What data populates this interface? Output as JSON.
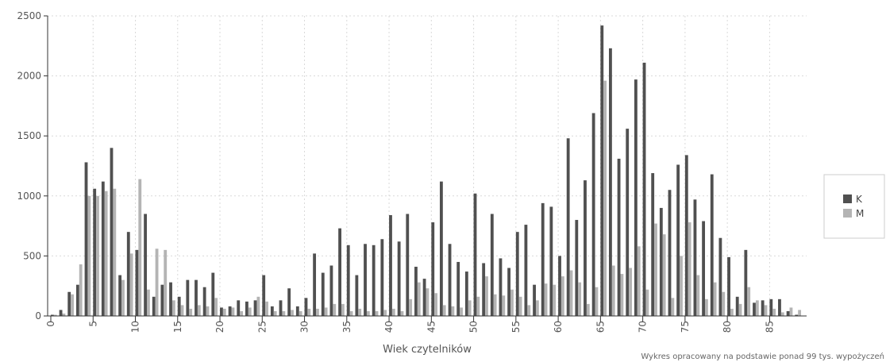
{
  "chart_data": {
    "type": "bar",
    "xlabel": "Wiek czytelników",
    "ylabel": "",
    "ylim": [
      0,
      2500
    ],
    "yticks": [
      0,
      500,
      1000,
      1500,
      2000,
      2500
    ],
    "xticks": [
      0,
      5,
      10,
      15,
      20,
      25,
      30,
      35,
      40,
      45,
      50,
      55,
      60,
      65,
      70,
      75,
      80,
      85
    ],
    "x": [
      0,
      1,
      2,
      3,
      4,
      5,
      6,
      7,
      8,
      9,
      10,
      11,
      12,
      13,
      14,
      15,
      16,
      17,
      18,
      19,
      20,
      21,
      22,
      23,
      24,
      25,
      26,
      27,
      28,
      29,
      30,
      31,
      32,
      33,
      34,
      35,
      36,
      37,
      38,
      39,
      40,
      41,
      42,
      43,
      44,
      45,
      46,
      47,
      48,
      49,
      50,
      51,
      52,
      53,
      54,
      55,
      56,
      57,
      58,
      59,
      60,
      61,
      62,
      63,
      64,
      65,
      66,
      67,
      68,
      69,
      70,
      71,
      72,
      73,
      74,
      75,
      76,
      77,
      78,
      79,
      80,
      81,
      82,
      83,
      84,
      85,
      86,
      87,
      88
    ],
    "series": [
      {
        "name": "K",
        "color": "#505050",
        "values": [
          10,
          50,
          200,
          260,
          1280,
          1060,
          1120,
          1400,
          340,
          700,
          550,
          850,
          160,
          260,
          280,
          160,
          300,
          300,
          240,
          360,
          70,
          80,
          130,
          120,
          130,
          340,
          80,
          130,
          230,
          80,
          150,
          520,
          360,
          420,
          730,
          590,
          340,
          600,
          590,
          640,
          840,
          620,
          850,
          410,
          310,
          780,
          1120,
          600,
          450,
          370,
          1020,
          440,
          850,
          480,
          400,
          700,
          760,
          260,
          940,
          910,
          500,
          1480,
          800,
          1130,
          1690,
          2420,
          2230,
          1310,
          1560,
          1970,
          2110,
          1190,
          900,
          1050,
          1260,
          1340,
          970,
          790,
          1180,
          650,
          490,
          160,
          550,
          110,
          130,
          140,
          140,
          40,
          10
        ],
        "overlay": [
          0,
          0,
          0,
          0,
          0,
          0,
          0,
          0,
          0,
          0,
          0,
          0,
          0,
          0,
          0,
          0,
          0,
          0,
          0,
          0,
          0,
          0,
          0,
          0,
          0,
          0,
          0,
          0,
          0,
          0,
          0,
          0,
          0,
          0,
          0,
          0,
          0,
          0,
          0,
          0,
          0,
          0,
          0,
          0,
          0,
          0,
          0,
          0,
          0,
          0,
          0,
          0,
          0,
          0,
          0,
          0,
          0,
          0,
          0,
          0,
          0,
          0,
          0,
          0,
          0,
          0,
          0,
          0,
          0,
          0,
          0,
          0,
          0,
          0,
          0,
          0,
          0,
          0,
          0,
          0,
          0,
          0,
          0,
          0,
          0,
          0,
          0,
          0,
          0
        ]
      },
      {
        "name": "M",
        "color": "#b4b4b4",
        "values": [
          10,
          20,
          180,
          430,
          1000,
          1000,
          1040,
          1060,
          300,
          520,
          1140,
          220,
          560,
          550,
          130,
          90,
          60,
          90,
          80,
          150,
          60,
          70,
          40,
          70,
          160,
          120,
          40,
          40,
          50,
          40,
          60,
          60,
          70,
          100,
          100,
          40,
          60,
          40,
          40,
          50,
          60,
          40,
          140,
          280,
          230,
          190,
          90,
          80,
          70,
          130,
          160,
          330,
          180,
          170,
          220,
          160,
          90,
          130,
          270,
          260,
          330,
          380,
          280,
          100,
          240,
          1960,
          420,
          350,
          400,
          580,
          220,
          770,
          680,
          150,
          500,
          780,
          340,
          140,
          280,
          200,
          60,
          100,
          240,
          130,
          90,
          60,
          30,
          70,
          50
        ],
        "overlay": [
          0,
          0,
          0,
          0,
          0,
          0,
          0,
          0,
          0,
          0,
          0,
          0,
          0,
          0,
          0,
          0,
          0,
          0,
          0,
          0,
          0,
          0,
          0,
          0,
          0,
          0,
          0,
          0,
          0,
          0,
          0,
          0,
          0,
          0,
          0,
          0,
          0,
          0,
          0,
          0,
          0,
          0,
          0,
          0,
          0,
          0,
          0,
          0,
          0,
          0,
          0,
          0,
          0,
          0,
          0,
          0,
          0,
          0,
          0,
          0,
          0,
          0,
          0,
          0,
          0,
          0,
          0,
          0,
          0,
          0,
          0,
          0,
          0,
          0,
          0,
          0,
          0,
          0,
          0,
          0,
          0,
          0,
          0,
          0,
          0,
          0,
          0,
          0,
          0
        ]
      }
    ],
    "legend": {
      "position": "right",
      "items": [
        "K",
        "M"
      ]
    },
    "grid": true,
    "footnote": "Wykres opracowany na podstawie ponad 99 tys. wypożyczeń"
  }
}
